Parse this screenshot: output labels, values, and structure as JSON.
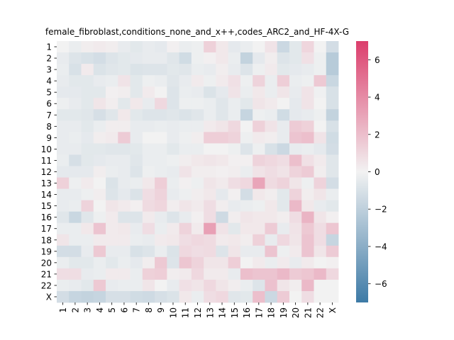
{
  "chart_data": {
    "type": "heatmap",
    "title": "female_fibroblast,conditions_none_and_x++,codes_ARC2_and_HF-4X-G",
    "xlabel": "",
    "ylabel": "",
    "x_categories": [
      "1",
      "2",
      "3",
      "4",
      "5",
      "6",
      "7",
      "8",
      "9",
      "10",
      "11",
      "12",
      "13",
      "14",
      "15",
      "16",
      "17",
      "18",
      "19",
      "20",
      "21",
      "22",
      "X"
    ],
    "y_categories": [
      "1",
      "2",
      "3",
      "4",
      "5",
      "6",
      "7",
      "8",
      "9",
      "10",
      "11",
      "12",
      "13",
      "14",
      "15",
      "16",
      "17",
      "18",
      "19",
      "20",
      "21",
      "22",
      "X"
    ],
    "vmin": -7,
    "vmax": 7,
    "colorbar_ticks": [
      -6,
      -4,
      -2,
      0,
      2,
      4,
      6
    ],
    "colormap": {
      "low": "#3d7aa6",
      "mid": "#f2f2f2",
      "high": "#dc3e6c"
    },
    "values": [
      [
        0.0,
        -0.3,
        0.2,
        0.3,
        0.2,
        -0.4,
        -0.6,
        -0.4,
        -0.5,
        0.1,
        -0.3,
        -0.2,
        1.3,
        0.4,
        -0.5,
        -0.3,
        0.0,
        0.6,
        -1.5,
        -0.6,
        1.1,
        0.0,
        -1.2
      ],
      [
        -0.4,
        -0.8,
        -1.0,
        -1.2,
        -0.8,
        -0.6,
        -0.5,
        -0.4,
        -0.4,
        -0.7,
        -1.3,
        -0.2,
        0.1,
        0.4,
        -0.3,
        -1.8,
        -0.5,
        0.2,
        -0.8,
        -0.6,
        0.7,
        -0.2,
        -2.3
      ],
      [
        -0.3,
        -1.0,
        0.3,
        -0.9,
        -0.7,
        -0.6,
        -0.9,
        -0.8,
        -0.8,
        -0.6,
        -0.7,
        -0.3,
        -0.4,
        0.2,
        -0.4,
        -0.8,
        -0.2,
        0.3,
        -0.6,
        -0.5,
        -0.4,
        -0.2,
        -2.3
      ],
      [
        -0.4,
        -0.6,
        -0.6,
        -0.4,
        -0.3,
        0.6,
        -0.6,
        -0.2,
        -0.3,
        -0.7,
        -0.4,
        0.3,
        -0.2,
        0.3,
        0.7,
        -0.2,
        1.2,
        -0.3,
        1.4,
        -0.3,
        -0.2,
        1.6,
        -1.6
      ],
      [
        -0.5,
        -0.5,
        -0.6,
        -0.6,
        0.1,
        0.2,
        -0.6,
        0.3,
        0.0,
        -0.8,
        -0.3,
        -0.4,
        -0.9,
        -0.5,
        0.6,
        -0.3,
        0.4,
        -0.3,
        0.5,
        -0.4,
        0.6,
        -0.1,
        -1.0
      ],
      [
        -0.2,
        -0.4,
        -0.6,
        0.5,
        0.2,
        -0.6,
        0.4,
        -0.4,
        1.0,
        -0.8,
        -0.2,
        -0.2,
        -0.3,
        -0.7,
        -0.3,
        -0.6,
        0.5,
        0.3,
        0.0,
        -0.5,
        0.6,
        0.0,
        -1.0
      ],
      [
        -0.6,
        -0.6,
        -0.7,
        -1.1,
        -0.7,
        0.4,
        -0.6,
        -0.8,
        -0.8,
        -0.7,
        -0.9,
        -0.7,
        -0.3,
        -0.7,
        -0.3,
        -1.7,
        -0.2,
        -0.3,
        -1.3,
        -0.5,
        -0.4,
        -0.2,
        -1.8
      ],
      [
        -0.4,
        -0.4,
        -0.6,
        -0.3,
        0.2,
        0.2,
        -0.4,
        -0.4,
        -0.3,
        -0.4,
        -0.3,
        -0.3,
        0.3,
        0.5,
        1.0,
        0.0,
        1.3,
        0.6,
        -0.4,
        1.5,
        1.3,
        0.0,
        -1.0
      ],
      [
        -0.4,
        -0.3,
        -0.5,
        0.2,
        0.3,
        1.5,
        -0.4,
        0.0,
        0.0,
        -0.4,
        -0.2,
        0.2,
        1.4,
        1.4,
        1.2,
        -0.2,
        0.3,
        0.2,
        -0.4,
        1.8,
        2.0,
        0.6,
        -1.3
      ],
      [
        -0.4,
        -0.4,
        -0.6,
        -0.6,
        -0.7,
        -0.7,
        -0.6,
        -0.3,
        -0.3,
        -0.6,
        -0.3,
        -0.3,
        0.0,
        0.0,
        -0.2,
        -0.8,
        -0.2,
        -1.0,
        -1.5,
        -0.4,
        -0.3,
        -0.5,
        -1.2
      ],
      [
        -0.3,
        -1.1,
        -0.6,
        -0.5,
        -0.4,
        -0.4,
        -0.7,
        -0.3,
        -0.3,
        -0.2,
        0.2,
        0.4,
        0.5,
        0.4,
        0.1,
        0.1,
        1.2,
        1.0,
        0.8,
        2.0,
        0.7,
        0.3,
        -0.7
      ],
      [
        -0.5,
        -0.5,
        -0.5,
        0.2,
        -0.3,
        -0.4,
        -0.8,
        -0.2,
        -0.3,
        -0.4,
        0.6,
        0.2,
        0.2,
        0.1,
        0.2,
        -0.3,
        0.6,
        0.8,
        0.6,
        1.2,
        1.5,
        0.2,
        -0.7
      ],
      [
        1.3,
        -0.2,
        0.3,
        0.0,
        -0.9,
        -0.4,
        -0.3,
        0.4,
        1.4,
        -0.3,
        0.1,
        -0.2,
        0.5,
        0.3,
        0.8,
        1.0,
        3.0,
        0.9,
        1.2,
        0.5,
        -0.2,
        1.2,
        -1.2
      ],
      [
        -0.4,
        -0.4,
        -0.2,
        0.2,
        -0.8,
        -0.5,
        -0.9,
        0.8,
        1.2,
        -0.4,
        -0.2,
        0.2,
        0.4,
        -0.5,
        0.1,
        -1.2,
        0.4,
        0.2,
        -0.6,
        1.2,
        0.2,
        0.5,
        -0.3
      ],
      [
        -0.4,
        -0.3,
        1.2,
        0.0,
        0.5,
        0.3,
        0.1,
        0.9,
        1.1,
        0.2,
        0.5,
        0.3,
        0.8,
        0.2,
        -0.4,
        -0.3,
        -0.2,
        0.4,
        -0.6,
        2.2,
        0.4,
        -0.4,
        -0.6
      ],
      [
        -0.7,
        -1.6,
        -0.7,
        -0.2,
        0.3,
        -0.8,
        -0.8,
        0.3,
        -0.4,
        -0.8,
        -0.4,
        0.1,
        0.8,
        -1.4,
        0.2,
        0.5,
        0.4,
        0.4,
        0.2,
        0.8,
        2.4,
        0.5,
        0.1
      ],
      [
        -0.3,
        -0.3,
        0.4,
        1.8,
        0.3,
        0.4,
        -0.4,
        0.8,
        -0.3,
        0.3,
        1.2,
        0.3,
        3.2,
        0.6,
        -0.6,
        0.4,
        0.4,
        1.5,
        -0.4,
        0.6,
        1.6,
        0.8,
        1.7
      ],
      [
        0.5,
        -0.3,
        -0.3,
        0.3,
        0.3,
        0.3,
        -0.3,
        -0.4,
        0.3,
        0.4,
        0.8,
        1.0,
        0.9,
        0.3,
        0.4,
        0.2,
        1.3,
        -0.4,
        1.0,
        0.5,
        1.8,
        0.8,
        -1.7
      ],
      [
        -1.2,
        -1.2,
        -0.4,
        1.6,
        -0.4,
        -0.4,
        -1.0,
        -0.8,
        -0.3,
        -0.9,
        1.0,
        0.8,
        0.9,
        -0.8,
        0.5,
        -0.4,
        -0.4,
        1.8,
        -0.2,
        0.3,
        1.8,
        0.5,
        1.5
      ],
      [
        -0.3,
        -0.6,
        -0.6,
        -0.3,
        -0.6,
        -0.3,
        -0.5,
        0.2,
        1.6,
        -0.8,
        1.7,
        1.2,
        0.5,
        0.5,
        1.4,
        0.0,
        0.3,
        -0.3,
        0.3,
        -0.4,
        0.3,
        0.0,
        0.1
      ],
      [
        0.8,
        0.8,
        -0.4,
        -0.3,
        0.3,
        0.3,
        -0.3,
        1.3,
        1.4,
        0.2,
        0.3,
        1.0,
        0.3,
        0.3,
        -0.4,
        2.0,
        1.8,
        1.8,
        2.2,
        1.5,
        1.7,
        2.2,
        1.0
      ],
      [
        -0.3,
        -0.4,
        -0.6,
        1.6,
        -0.4,
        -0.3,
        -0.3,
        0.5,
        0.0,
        -0.4,
        0.7,
        0.5,
        1.0,
        0.5,
        0.2,
        -0.3,
        -0.8,
        1.9,
        0.5,
        0.2,
        2.2,
        0.0,
        0.0
      ],
      [
        -1.2,
        -1.7,
        -1.8,
        -1.7,
        -1.1,
        -1.1,
        -1.3,
        -1.4,
        -1.1,
        -0.9,
        0.4,
        -0.3,
        0.8,
        1.0,
        -0.7,
        -0.6,
        2.0,
        -1.5,
        1.5,
        0.0,
        0.8,
        0.0,
        0.0
      ]
    ]
  }
}
